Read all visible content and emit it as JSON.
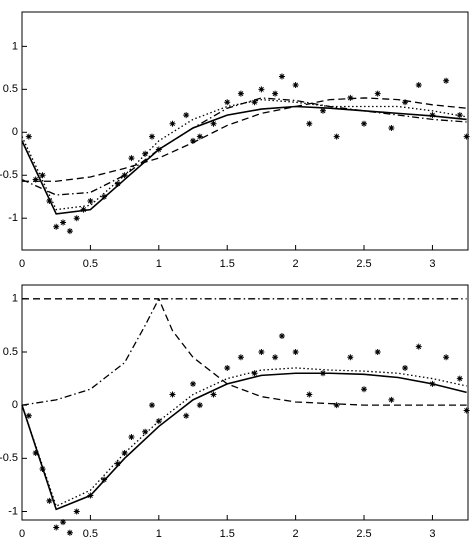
{
  "chart_data": [
    {
      "type": "line",
      "xlim": [
        0,
        3.26
      ],
      "ylim": [
        -1.37,
        1.4
      ],
      "xticks": [
        0,
        0.5,
        1,
        1.5,
        2,
        2.5,
        3
      ],
      "yticks": [
        -1,
        -0.5,
        0,
        0.5,
        1
      ],
      "series": [
        {
          "style": "solid",
          "color": "#000000",
          "x": [
            0,
            0.25,
            0.5,
            0.75,
            1,
            1.25,
            1.5,
            1.75,
            2,
            2.25,
            2.5,
            2.75,
            3,
            3.25
          ],
          "values": [
            -0.1,
            -0.95,
            -0.9,
            -0.55,
            -0.2,
            0.05,
            0.2,
            0.27,
            0.3,
            0.28,
            0.25,
            0.22,
            0.19,
            0.15
          ]
        },
        {
          "style": "dotted",
          "color": "#000000",
          "x": [
            0,
            0.25,
            0.5,
            0.75,
            1,
            1.25,
            1.5,
            1.75,
            2,
            2.25,
            2.5,
            2.75,
            3,
            3.25
          ],
          "values": [
            -0.05,
            -0.9,
            -0.85,
            -0.5,
            -0.1,
            0.15,
            0.3,
            0.38,
            0.35,
            0.3,
            0.3,
            0.3,
            0.25,
            0.18
          ]
        },
        {
          "style": "dashdot",
          "color": "#000000",
          "x": [
            0,
            0.25,
            0.5,
            0.75,
            1,
            1.25,
            1.5,
            1.75,
            2,
            2.25,
            2.5,
            2.75,
            3,
            3.25
          ],
          "values": [
            -0.55,
            -0.73,
            -0.7,
            -0.5,
            -0.2,
            0.05,
            0.28,
            0.4,
            0.37,
            0.3,
            0.25,
            0.2,
            0.15,
            0.12
          ]
        },
        {
          "style": "dashed",
          "color": "#000000",
          "x": [
            0,
            0.25,
            0.5,
            0.75,
            1,
            1.25,
            1.5,
            1.75,
            2,
            2.25,
            2.5,
            2.75,
            3,
            3.25
          ],
          "values": [
            -0.57,
            -0.57,
            -0.52,
            -0.42,
            -0.3,
            -0.12,
            0.08,
            0.22,
            0.3,
            0.38,
            0.4,
            0.38,
            0.32,
            0.28
          ]
        },
        {
          "style": "markers",
          "color": "#000000",
          "x": [
            0.05,
            0.1,
            0.15,
            0.2,
            0.25,
            0.3,
            0.35,
            0.4,
            0.45,
            0.5,
            0.6,
            0.7,
            0.75,
            0.8,
            0.9,
            0.95,
            1.0,
            1.1,
            1.2,
            1.25,
            1.3,
            1.4,
            1.5,
            1.6,
            1.7,
            1.75,
            1.85,
            1.9,
            2.0,
            2.1,
            2.2,
            2.3,
            2.4,
            2.5,
            2.6,
            2.7,
            2.8,
            2.9,
            3.0,
            3.1,
            3.2,
            3.25
          ],
          "values": [
            -0.05,
            -0.55,
            -0.5,
            -0.8,
            -1.1,
            -1.05,
            -1.15,
            -1.0,
            -0.9,
            -0.8,
            -0.75,
            -0.6,
            -0.5,
            -0.3,
            -0.25,
            -0.05,
            -0.2,
            0.1,
            0.2,
            -0.1,
            -0.05,
            0.1,
            0.35,
            0.45,
            0.35,
            0.5,
            0.45,
            0.65,
            0.55,
            0.1,
            0.25,
            -0.05,
            0.4,
            0.1,
            0.45,
            0.05,
            0.35,
            0.55,
            0.2,
            0.6,
            0.2,
            -0.05
          ]
        }
      ]
    },
    {
      "type": "line",
      "xlim": [
        0,
        3.26
      ],
      "ylim": [
        -1.08,
        1.13
      ],
      "xticks": [
        0,
        0.5,
        1,
        1.5,
        2,
        2.5,
        3
      ],
      "yticks": [
        -1,
        -0.5,
        0,
        0.5,
        1
      ],
      "series": [
        {
          "style": "solid",
          "color": "#000000",
          "x": [
            0,
            0.25,
            0.5,
            0.75,
            1,
            1.25,
            1.5,
            1.75,
            2,
            2.25,
            2.5,
            2.75,
            3,
            3.25
          ],
          "values": [
            0,
            -0.98,
            -0.85,
            -0.5,
            -0.2,
            0.05,
            0.2,
            0.28,
            0.3,
            0.3,
            0.29,
            0.26,
            0.2,
            0.12
          ]
        },
        {
          "style": "dotted",
          "color": "#000000",
          "x": [
            0,
            0.25,
            0.5,
            0.75,
            1,
            1.25,
            1.5,
            1.75,
            2,
            2.25,
            2.5,
            2.75,
            3,
            3.25
          ],
          "values": [
            0,
            -0.95,
            -0.8,
            -0.45,
            -0.15,
            0.1,
            0.25,
            0.33,
            0.35,
            0.33,
            0.32,
            0.3,
            0.25,
            0.18
          ]
        },
        {
          "style": "dashdot",
          "color": "#000000",
          "x": [
            0,
            0.25,
            0.5,
            0.75,
            0.9,
            1,
            1.5,
            2,
            2.5,
            3,
            3.25
          ],
          "values": [
            0,
            0.05,
            0.15,
            0.4,
            0.75,
            1,
            1,
            1,
            1,
            1,
            1
          ]
        },
        {
          "style": "dashed",
          "color": "#000000",
          "x": [
            0,
            0.5,
            1,
            1.1,
            1.25,
            1.5,
            1.75,
            2,
            2.5,
            3,
            3.25
          ],
          "values": [
            1,
            1,
            1,
            0.7,
            0.45,
            0.2,
            0.08,
            0.03,
            0,
            0,
            0
          ]
        },
        {
          "style": "markers",
          "color": "#000000",
          "x": [
            0.05,
            0.1,
            0.15,
            0.2,
            0.25,
            0.3,
            0.35,
            0.4,
            0.5,
            0.6,
            0.7,
            0.75,
            0.8,
            0.9,
            0.95,
            1.0,
            1.1,
            1.2,
            1.25,
            1.3,
            1.4,
            1.5,
            1.6,
            1.7,
            1.75,
            1.85,
            1.9,
            2.0,
            2.1,
            2.2,
            2.3,
            2.4,
            2.5,
            2.6,
            2.7,
            2.8,
            2.9,
            3.0,
            3.1,
            3.2,
            3.25
          ],
          "values": [
            -0.1,
            -0.45,
            -0.6,
            -0.9,
            -1.15,
            -1.1,
            -1.2,
            -1.0,
            -0.85,
            -0.7,
            -0.55,
            -0.45,
            -0.3,
            -0.25,
            0.0,
            -0.15,
            0.1,
            -0.1,
            0.2,
            0.0,
            0.1,
            0.35,
            0.45,
            0.3,
            0.5,
            0.45,
            0.65,
            0.5,
            0.1,
            0.3,
            0.0,
            0.45,
            0.15,
            0.5,
            0.05,
            0.35,
            0.55,
            0.2,
            0.45,
            0.25,
            -0.05
          ]
        }
      ]
    }
  ]
}
